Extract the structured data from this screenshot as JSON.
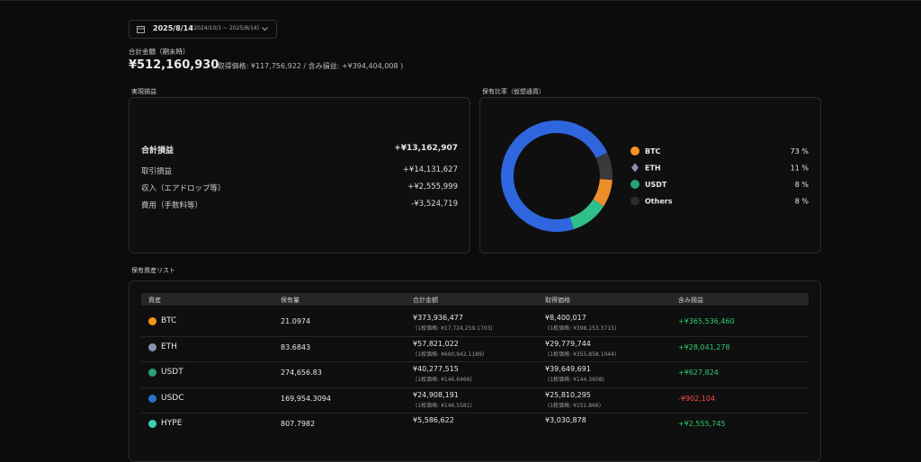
{
  "header": {
    "date": "2025/8/14",
    "range": "(2024/10/1 ~ 2025/8/14)"
  },
  "total": {
    "label": "合計金額（期末時）",
    "amount": "¥512,160,930",
    "detail": "( 取得価格: ¥117,756,922 / 含み損益: +¥394,404,008 )"
  },
  "realized": {
    "title": "実現損益",
    "total_label": "合計損益",
    "total_value": "+¥13,162,907",
    "rows": [
      {
        "label": "取引損益",
        "value": "+¥14,131,627"
      },
      {
        "label": "収入（エアドロップ等）",
        "value": "+¥2,555,999"
      },
      {
        "label": "費用（手数料等）",
        "value": "-¥3,524,719"
      }
    ]
  },
  "chart_data": {
    "type": "pie",
    "title": "保有比率（仮想通貨）",
    "categories": [
      "BTC",
      "ETH",
      "USDT",
      "Others"
    ],
    "values": [
      73,
      11,
      8,
      8
    ],
    "value_labels": [
      "73 %",
      "11 %",
      "8 %",
      "8 %"
    ],
    "colors": [
      "#2f66dd",
      "#2fbf8a",
      "#ee8e2a",
      "#3a3a3c"
    ]
  },
  "assets": {
    "title": "保有資産リスト",
    "columns": [
      "資産",
      "保有量",
      "合計金額",
      "取得価格",
      "含み損益"
    ],
    "rows": [
      {
        "name": "BTC",
        "quantity": "21.0974",
        "total": "¥373,936,477",
        "total_sub": "(1枚価格: ¥17,724,259.1703)",
        "cost": "¥8,400,017",
        "cost_sub": "(1枚価格: ¥398,153.3715)",
        "gain": "+¥365,536,460"
      },
      {
        "name": "ETH",
        "quantity": "83.6843",
        "total": "¥57,821,022",
        "total_sub": "(1枚価格: ¥690,942.1189)",
        "cost": "¥29,779,744",
        "cost_sub": "(1枚価格: ¥355,858.1044)",
        "gain": "+¥28,041,278"
      },
      {
        "name": "USDT",
        "quantity": "274,656.83",
        "total": "¥40,277,515",
        "total_sub": "(1枚価格: ¥146.6466)",
        "cost": "¥39,649,691",
        "cost_sub": "(1枚価格: ¥144.3608)",
        "gain": "+¥627,824"
      },
      {
        "name": "USDC",
        "quantity": "169,954.3094",
        "total": "¥24,908,191",
        "total_sub": "(1枚価格: ¥146.5581)",
        "cost": "¥25,810,295",
        "cost_sub": "(1枚価格: ¥151.866)",
        "gain": "-¥902,104"
      },
      {
        "name": "HYPE",
        "quantity": "807.7982",
        "total": "¥5,586,622",
        "cost": "¥3,030,878",
        "gain": "+¥2,555,745"
      }
    ]
  }
}
